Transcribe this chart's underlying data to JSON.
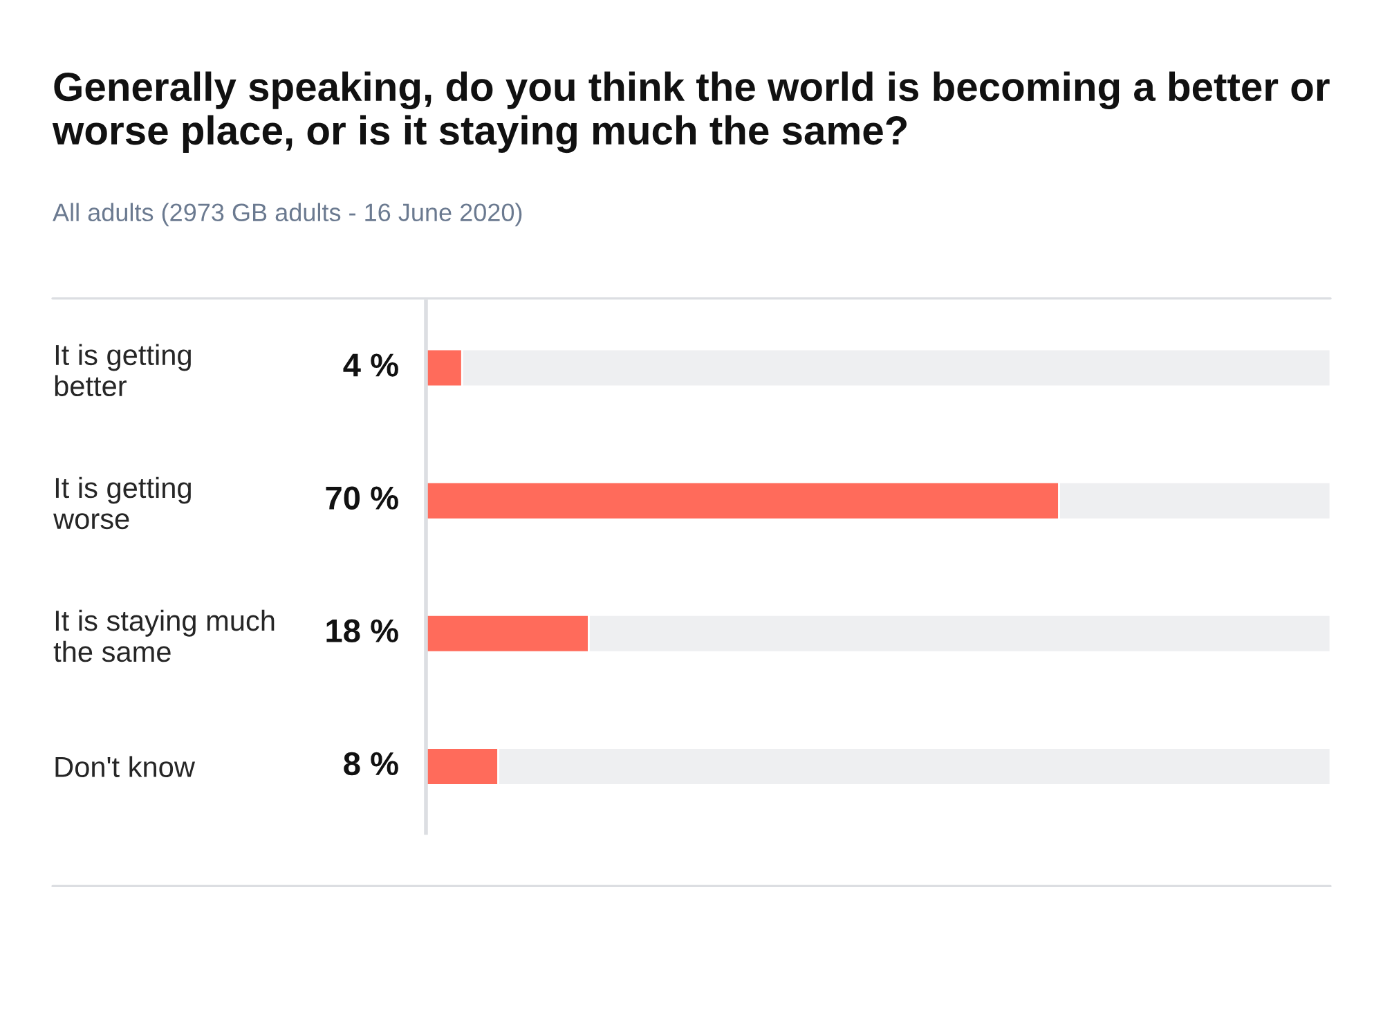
{
  "chart_data": {
    "type": "bar",
    "orientation": "horizontal",
    "stacked": true,
    "title": "Generally speaking, do you think the world is becoming a better or worse place, or is it staying much the same?",
    "subtitle": "All adults (2973 GB adults - 16 June 2020)",
    "categories": [
      "It is getting\nbetter",
      "It is getting\nworse",
      "It is staying much\nthe same",
      "Don't know"
    ],
    "series": [
      {
        "color": "#ff6b5b",
        "values": [
          4,
          70,
          18,
          8
        ],
        "value_labels": [
          "4 %",
          "70 %",
          "18 %",
          "8 %"
        ]
      },
      {
        "color": "#eeeff1",
        "values": [
          96,
          30,
          82,
          92
        ]
      }
    ],
    "xlim": [
      0,
      100
    ],
    "tick_labels": "y"
  }
}
